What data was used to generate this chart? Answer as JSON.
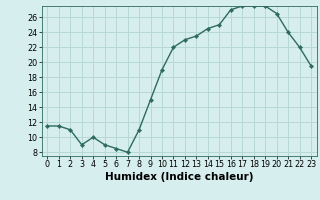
{
  "x": [
    0,
    1,
    2,
    3,
    4,
    5,
    6,
    7,
    8,
    9,
    10,
    11,
    12,
    13,
    14,
    15,
    16,
    17,
    18,
    19,
    20,
    21,
    22,
    23
  ],
  "y": [
    11.5,
    11.5,
    11.0,
    9.0,
    10.0,
    9.0,
    8.5,
    8.0,
    11.0,
    15.0,
    19.0,
    22.0,
    23.0,
    23.5,
    24.5,
    25.0,
    27.0,
    27.5,
    27.5,
    27.5,
    26.5,
    24.0,
    22.0,
    19.5
  ],
  "xlabel": "Humidex (Indice chaleur)",
  "xlim": [
    -0.5,
    23.5
  ],
  "ylim": [
    7.5,
    27.5
  ],
  "yticks": [
    8,
    10,
    12,
    14,
    16,
    18,
    20,
    22,
    24,
    26
  ],
  "xticks": [
    0,
    1,
    2,
    3,
    4,
    5,
    6,
    7,
    8,
    9,
    10,
    11,
    12,
    13,
    14,
    15,
    16,
    17,
    18,
    19,
    20,
    21,
    22,
    23
  ],
  "line_color": "#2e6b5e",
  "marker": "D",
  "marker_size": 2.2,
  "bg_color": "#d6eeee",
  "grid_color": "#b8d8d8",
  "xlabel_fontsize": 7.5,
  "tick_fontsize": 5.8,
  "linewidth": 1.0
}
